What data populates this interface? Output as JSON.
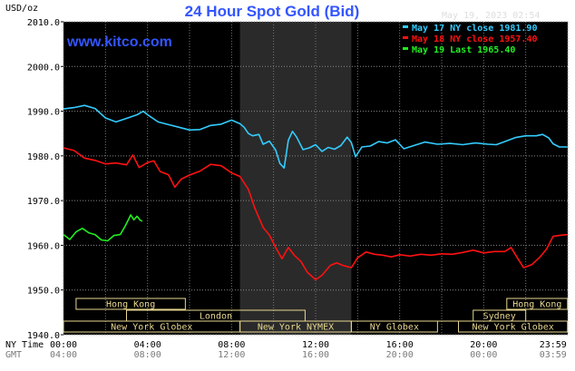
{
  "header": {
    "title": "24 Hour Spot Gold (Bid)",
    "date": "May 19, 2023 02:54",
    "site": "www.kitco.com",
    "unit": "USD/oz"
  },
  "colors": {
    "background": "#000000",
    "may17": "#33ccff",
    "may18": "#ff1111",
    "may19": "#22ee22",
    "title": "#3355ff",
    "market_box": "#e8d890",
    "shade": "#2a2a2a"
  },
  "chart_data": {
    "type": "line",
    "title": "24 Hour Spot Gold (Bid)",
    "ylabel": "USD/oz",
    "ylim": [
      1940,
      2010
    ],
    "yticks": [
      "2010.0",
      "2000.0",
      "1990.0",
      "1980.0",
      "1970.0",
      "1960.0",
      "1950.0",
      "1940.0"
    ],
    "xlim": [
      0,
      24
    ],
    "grid": true,
    "legend_position": "top-right",
    "x_label_rows": [
      {
        "label": "NY Time",
        "ticks": [
          "00:00",
          "04:00",
          "08:00",
          "12:00",
          "16:00",
          "20:00",
          "23:59"
        ]
      },
      {
        "label": "GMT",
        "ticks": [
          "04:00",
          "08:00",
          "12:00",
          "16:00",
          "20:00",
          "00:00",
          "03:59"
        ]
      }
    ],
    "shaded_range": [
      8.4,
      13.7
    ],
    "markets": [
      {
        "name": "Hong Kong",
        "start": 0.6,
        "end": 5.8,
        "row": 0
      },
      {
        "name": "Hong Kong",
        "start": 21.1,
        "end": 23.99,
        "row": 0
      },
      {
        "name": "London",
        "start": 0.0,
        "end": 23.99,
        "row": 1,
        "box_start": 3.0,
        "box_end": 11.5
      },
      {
        "name": "Sydney",
        "start": 19.0,
        "end": 23.99,
        "row": 1,
        "box_start": 19.5,
        "box_end": 22.0
      },
      {
        "name": "New York Globex",
        "start": 0.0,
        "end": 8.4,
        "row": 2
      },
      {
        "name": "New York NYMEX",
        "start": 8.4,
        "end": 13.7,
        "row": 2
      },
      {
        "name": "NY Globex",
        "start": 13.7,
        "end": 17.8,
        "row": 2
      },
      {
        "name": "New York Globex",
        "start": 18.8,
        "end": 23.99,
        "row": 2
      }
    ],
    "series": [
      {
        "name": "May 17 NY close 1981.90",
        "color": "#33ccff",
        "points": [
          [
            0,
            1990.5
          ],
          [
            0.5,
            1990.8
          ],
          [
            1,
            1991.3
          ],
          [
            1.5,
            1990.6
          ],
          [
            2,
            1988.5
          ],
          [
            2.5,
            1987.6
          ],
          [
            3,
            1988.4
          ],
          [
            3.5,
            1989.2
          ],
          [
            3.8,
            1990.0
          ],
          [
            4,
            1989.2
          ],
          [
            4.5,
            1987.6
          ],
          [
            5,
            1987.0
          ],
          [
            5.5,
            1986.4
          ],
          [
            6,
            1985.8
          ],
          [
            6.5,
            1985.9
          ],
          [
            7,
            1986.8
          ],
          [
            7.5,
            1987.1
          ],
          [
            8,
            1988.0
          ],
          [
            8.4,
            1987.2
          ],
          [
            8.6,
            1986.4
          ],
          [
            8.8,
            1985.0
          ],
          [
            9,
            1984.5
          ],
          [
            9.3,
            1984.8
          ],
          [
            9.5,
            1982.6
          ],
          [
            9.8,
            1983.3
          ],
          [
            10.1,
            1981.3
          ],
          [
            10.3,
            1978.3
          ],
          [
            10.5,
            1977.3
          ],
          [
            10.7,
            1983.5
          ],
          [
            10.9,
            1985.5
          ],
          [
            11.1,
            1984.2
          ],
          [
            11.4,
            1981.4
          ],
          [
            11.7,
            1981.8
          ],
          [
            12,
            1982.5
          ],
          [
            12.3,
            1981.0
          ],
          [
            12.6,
            1981.9
          ],
          [
            12.9,
            1981.5
          ],
          [
            13.2,
            1982.3
          ],
          [
            13.5,
            1984.2
          ],
          [
            13.7,
            1983.0
          ],
          [
            13.9,
            1979.8
          ],
          [
            14.2,
            1982.0
          ],
          [
            14.6,
            1982.2
          ],
          [
            15,
            1983.2
          ],
          [
            15.4,
            1982.9
          ],
          [
            15.8,
            1983.6
          ],
          [
            16.2,
            1981.6
          ],
          [
            16.6,
            1982.2
          ],
          [
            17.2,
            1983.1
          ],
          [
            17.8,
            1982.6
          ],
          [
            18.4,
            1982.8
          ],
          [
            19,
            1982.5
          ],
          [
            19.6,
            1982.9
          ],
          [
            20.2,
            1982.6
          ],
          [
            20.6,
            1982.5
          ],
          [
            21,
            1983.2
          ],
          [
            21.5,
            1984.1
          ],
          [
            22,
            1984.5
          ],
          [
            22.5,
            1984.5
          ],
          [
            22.8,
            1984.8
          ],
          [
            23.1,
            1984.0
          ],
          [
            23.3,
            1982.7
          ],
          [
            23.6,
            1982.0
          ],
          [
            23.99,
            1982.0
          ]
        ]
      },
      {
        "name": "May 18 NY close 1957.40",
        "color": "#ff1111",
        "points": [
          [
            0,
            1981.8
          ],
          [
            0.5,
            1981.2
          ],
          [
            1,
            1979.5
          ],
          [
            1.5,
            1979.0
          ],
          [
            2,
            1978.2
          ],
          [
            2.5,
            1978.4
          ],
          [
            3,
            1978.0
          ],
          [
            3.3,
            1980.2
          ],
          [
            3.6,
            1977.4
          ],
          [
            4,
            1978.5
          ],
          [
            4.3,
            1978.9
          ],
          [
            4.6,
            1976.5
          ],
          [
            5,
            1975.8
          ],
          [
            5.3,
            1973.0
          ],
          [
            5.6,
            1974.8
          ],
          [
            6,
            1975.7
          ],
          [
            6.5,
            1976.6
          ],
          [
            7,
            1978.1
          ],
          [
            7.5,
            1977.8
          ],
          [
            8,
            1976.2
          ],
          [
            8.4,
            1975.4
          ],
          [
            8.8,
            1972.5
          ],
          [
            9.1,
            1968.4
          ],
          [
            9.5,
            1964.0
          ],
          [
            9.8,
            1962.3
          ],
          [
            10.1,
            1959.5
          ],
          [
            10.4,
            1957.0
          ],
          [
            10.7,
            1959.5
          ],
          [
            11,
            1957.7
          ],
          [
            11.3,
            1956.4
          ],
          [
            11.6,
            1954.0
          ],
          [
            12,
            1952.3
          ],
          [
            12.3,
            1953.3
          ],
          [
            12.7,
            1955.5
          ],
          [
            13,
            1956.1
          ],
          [
            13.3,
            1955.5
          ],
          [
            13.7,
            1955.0
          ],
          [
            14,
            1957.2
          ],
          [
            14.4,
            1958.5
          ],
          [
            14.8,
            1958.0
          ],
          [
            15.2,
            1957.8
          ],
          [
            15.6,
            1957.4
          ],
          [
            16,
            1957.9
          ],
          [
            16.5,
            1957.6
          ],
          [
            17,
            1958.0
          ],
          [
            17.5,
            1957.8
          ],
          [
            18,
            1958.1
          ],
          [
            18.5,
            1958.0
          ],
          [
            19,
            1958.4
          ],
          [
            19.5,
            1958.9
          ],
          [
            20,
            1958.3
          ],
          [
            20.5,
            1958.6
          ],
          [
            21,
            1958.6
          ],
          [
            21.3,
            1959.5
          ],
          [
            21.6,
            1957.2
          ],
          [
            21.9,
            1955.0
          ],
          [
            22.3,
            1955.7
          ],
          [
            22.7,
            1957.5
          ],
          [
            23.0,
            1959.2
          ],
          [
            23.3,
            1962.0
          ],
          [
            23.6,
            1962.2
          ],
          [
            23.99,
            1962.4
          ]
        ]
      },
      {
        "name": "May 19 Last 1965.40",
        "color": "#22ee22",
        "points": [
          [
            0,
            1962.4
          ],
          [
            0.3,
            1961.3
          ],
          [
            0.6,
            1963.0
          ],
          [
            0.9,
            1963.8
          ],
          [
            1.2,
            1962.8
          ],
          [
            1.5,
            1962.4
          ],
          [
            1.8,
            1961.2
          ],
          [
            2.1,
            1961.0
          ],
          [
            2.4,
            1962.2
          ],
          [
            2.7,
            1962.4
          ],
          [
            2.9,
            1964.0
          ],
          [
            3.1,
            1965.8
          ],
          [
            3.2,
            1966.8
          ],
          [
            3.35,
            1965.7
          ],
          [
            3.5,
            1966.5
          ],
          [
            3.65,
            1965.6
          ],
          [
            3.75,
            1965.4
          ]
        ]
      }
    ]
  }
}
